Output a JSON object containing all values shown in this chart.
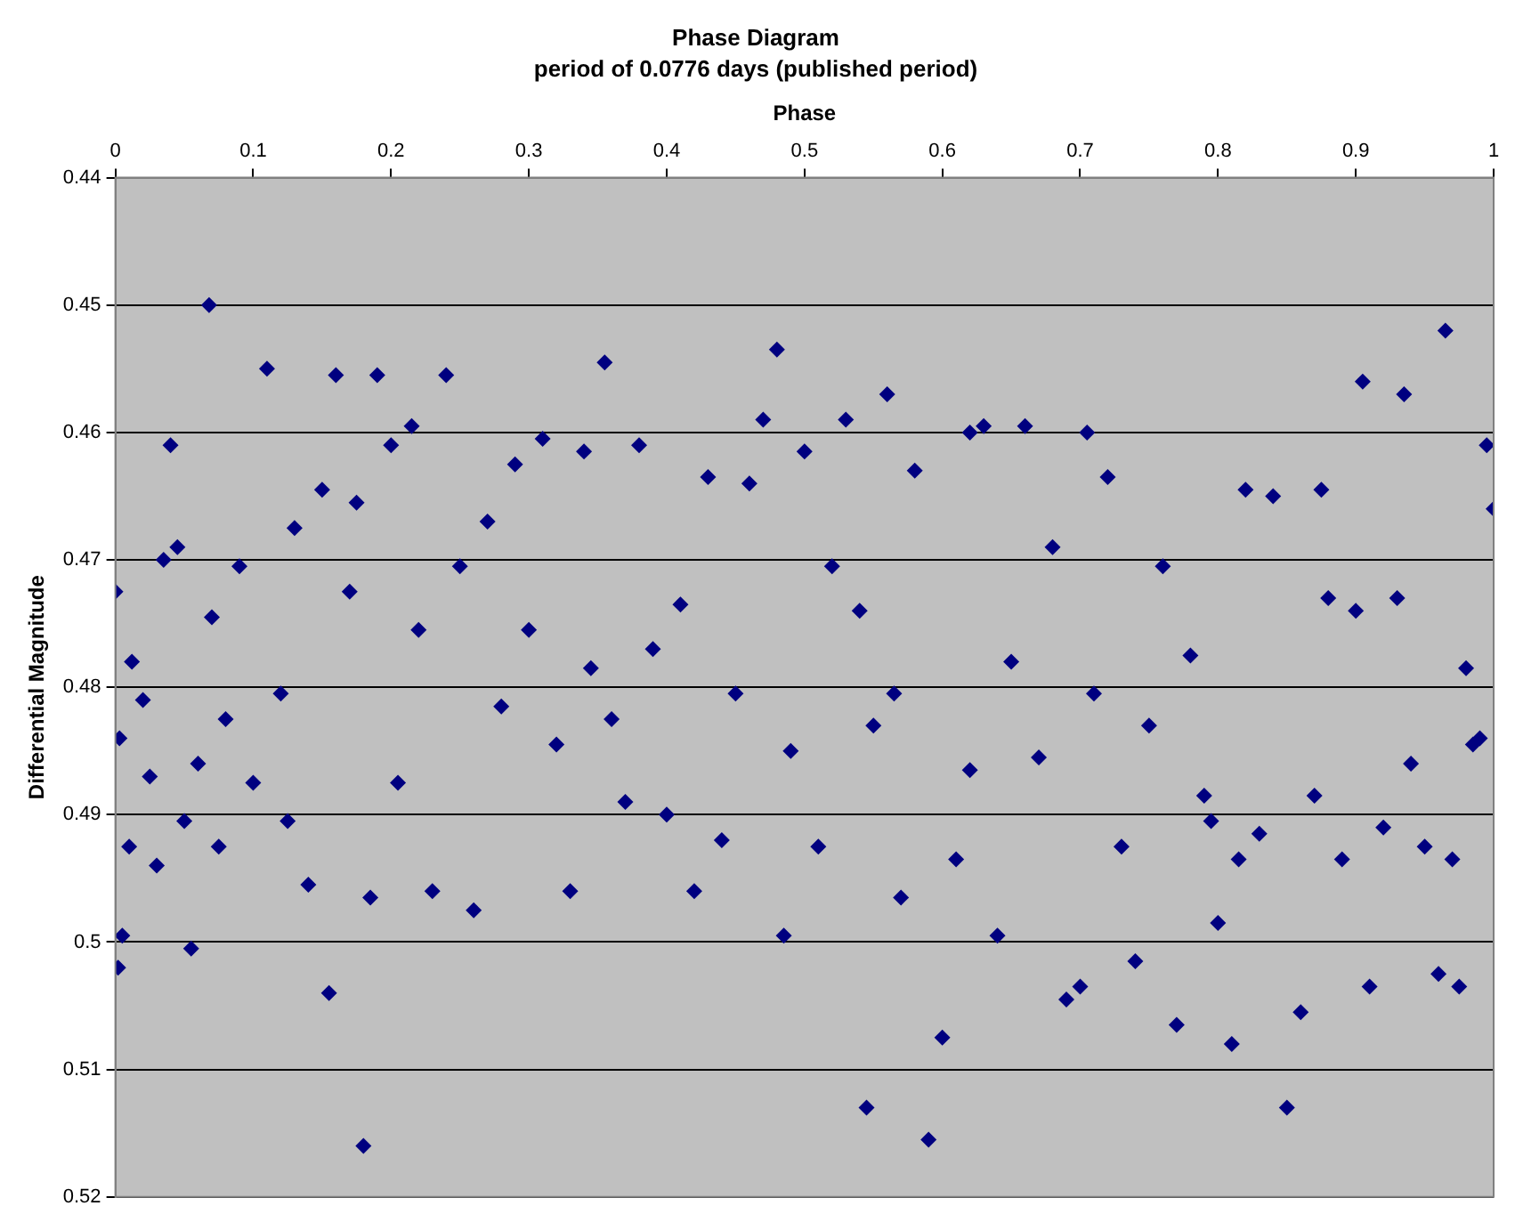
{
  "chart_data": {
    "type": "scatter",
    "title": "Phase Diagram",
    "subtitle": "period of 0.0776 days (published period)",
    "xlabel": "Phase",
    "ylabel": "Differential Magnitude",
    "xlim": [
      0,
      1
    ],
    "xticks": [
      0,
      0.1,
      0.2,
      0.3,
      0.4,
      0.5,
      0.6,
      0.7,
      0.8,
      0.9,
      1
    ],
    "ylim": [
      0.52,
      0.44
    ],
    "yticks": [
      0.44,
      0.45,
      0.46,
      0.47,
      0.48,
      0.49,
      0.5,
      0.51,
      0.52
    ],
    "grid": "y",
    "legend": false,
    "marker": "diamond",
    "series": [
      {
        "color": "#000080",
        "x": [
          0,
          0.003,
          0.002,
          0.005,
          0.01,
          0.012,
          0.02,
          0.025,
          0.03,
          0.035,
          0.04,
          0.045,
          0.05,
          0.055,
          0.06,
          0.068,
          0.07,
          0.075,
          0.08,
          0.09,
          0.1,
          0.11,
          0.12,
          0.125,
          0.13,
          0.14,
          0.15,
          0.155,
          0.16,
          0.17,
          0.175,
          0.18,
          0.185,
          0.19,
          0.2,
          0.205,
          0.215,
          0.22,
          0.23,
          0.24,
          0.25,
          0.26,
          0.27,
          0.28,
          0.29,
          0.3,
          0.31,
          0.32,
          0.33,
          0.34,
          0.345,
          0.355,
          0.36,
          0.37,
          0.38,
          0.39,
          0.4,
          0.41,
          0.42,
          0.43,
          0.44,
          0.45,
          0.46,
          0.47,
          0.48,
          0.485,
          0.49,
          0.5,
          0.51,
          0.52,
          0.53,
          0.54,
          0.545,
          0.55,
          0.56,
          0.565,
          0.57,
          0.58,
          0.59,
          0.6,
          0.61,
          0.62,
          0.62,
          0.63,
          0.64,
          0.65,
          0.66,
          0.67,
          0.68,
          0.69,
          0.7,
          0.705,
          0.71,
          0.72,
          0.73,
          0.74,
          0.75,
          0.76,
          0.77,
          0.78,
          0.79,
          0.795,
          0.8,
          0.81,
          0.815,
          0.82,
          0.83,
          0.84,
          0.85,
          0.86,
          0.87,
          0.875,
          0.88,
          0.89,
          0.9,
          0.905,
          0.91,
          0.92,
          0.93,
          0.935,
          0.94,
          0.95,
          0.96,
          0.965,
          0.97,
          0.975,
          0.98,
          0.985,
          0.99,
          0.995,
          1
        ],
        "values": [
          0.4725,
          0.484,
          0.502,
          0.4995,
          0.4925,
          0.478,
          0.481,
          0.487,
          0.494,
          0.47,
          0.461,
          0.469,
          0.4905,
          0.5005,
          0.486,
          0.45,
          0.4745,
          0.4925,
          0.4825,
          0.4705,
          0.4875,
          0.455,
          0.4805,
          0.4905,
          0.4675,
          0.4955,
          0.4645,
          0.504,
          0.4555,
          0.4725,
          0.4655,
          0.516,
          0.4965,
          0.4555,
          0.461,
          0.4875,
          0.4595,
          0.4755,
          0.496,
          0.4555,
          0.4705,
          0.4975,
          0.467,
          0.4815,
          0.4625,
          0.4755,
          0.4605,
          0.4845,
          0.496,
          0.4615,
          0.4785,
          0.4545,
          0.4825,
          0.489,
          0.461,
          0.477,
          0.49,
          0.4735,
          0.496,
          0.4635,
          0.492,
          0.4805,
          0.464,
          0.459,
          0.4535,
          0.4995,
          0.485,
          0.4615,
          0.4925,
          0.4705,
          0.459,
          0.474,
          0.513,
          0.483,
          0.457,
          0.4805,
          0.4965,
          0.463,
          0.5155,
          0.5075,
          0.4935,
          0.46,
          0.4865,
          0.4595,
          0.4995,
          0.478,
          0.4595,
          0.4855,
          0.469,
          0.5045,
          0.5035,
          0.46,
          0.4805,
          0.4635,
          0.4925,
          0.5015,
          0.483,
          0.4705,
          0.5065,
          0.4775,
          0.4885,
          0.4905,
          0.4985,
          0.508,
          0.4935,
          0.4645,
          0.4915,
          0.465,
          0.513,
          0.5055,
          0.4885,
          0.4645,
          0.473,
          0.4935,
          0.474,
          0.456,
          0.5035,
          0.491,
          0.473,
          0.457,
          0.486,
          0.4925,
          0.5025,
          0.452,
          0.4935,
          0.5035,
          0.4785,
          0.4845,
          0.484,
          0.461,
          0.466
        ]
      }
    ]
  }
}
